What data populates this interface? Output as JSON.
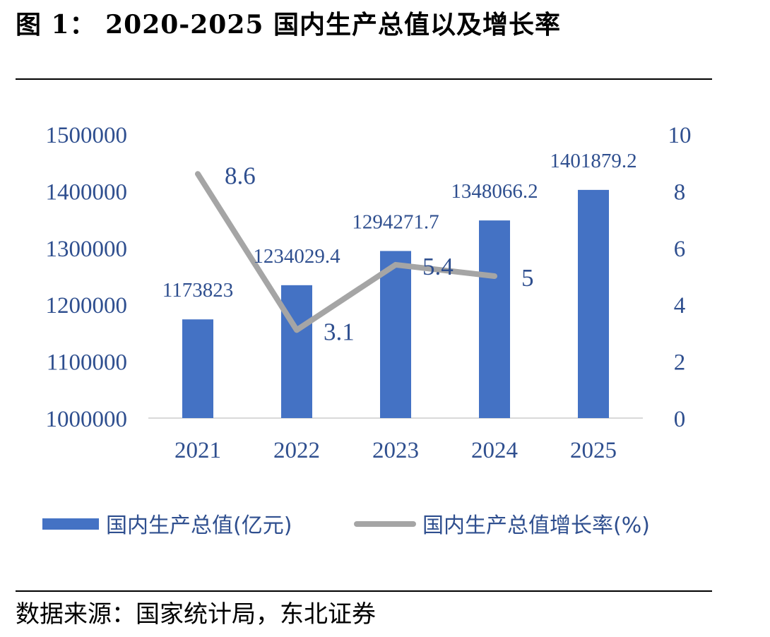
{
  "title": "图  1：  2020-2025 国内生产总值以及增长率",
  "source": "数据来源：国家统计局，东北证券",
  "chart_data": {
    "type": "bar+line",
    "categories": [
      "2021",
      "2022",
      "2023",
      "2024",
      "2025"
    ],
    "series": [
      {
        "name": "国内生产总值(亿元)",
        "type": "bar",
        "axis": "left",
        "color": "#4472C4",
        "values": [
          1173823,
          1234029.4,
          1294271.7,
          1348066.2,
          1401879.2
        ],
        "labels": [
          "1173823",
          "1234029.4",
          "1294271.7",
          "1348066.2",
          "1401879.2"
        ]
      },
      {
        "name": "国内生产总值增长率(%)",
        "type": "line",
        "axis": "right",
        "color": "#A5A5A5",
        "values": [
          8.6,
          3.1,
          5.4,
          5,
          null
        ],
        "labels": [
          "8.6",
          "3.1",
          "5.4",
          "5",
          ""
        ]
      }
    ],
    "y_left": {
      "min": 1000000,
      "max": 1500000,
      "ticks": [
        "1000000",
        "1100000",
        "1200000",
        "1300000",
        "1400000",
        "1500000"
      ]
    },
    "y_right": {
      "min": 0,
      "max": 10,
      "ticks": [
        "0",
        "2",
        "4",
        "6",
        "8",
        "10"
      ]
    },
    "legend_position": "bottom",
    "grid": false
  }
}
